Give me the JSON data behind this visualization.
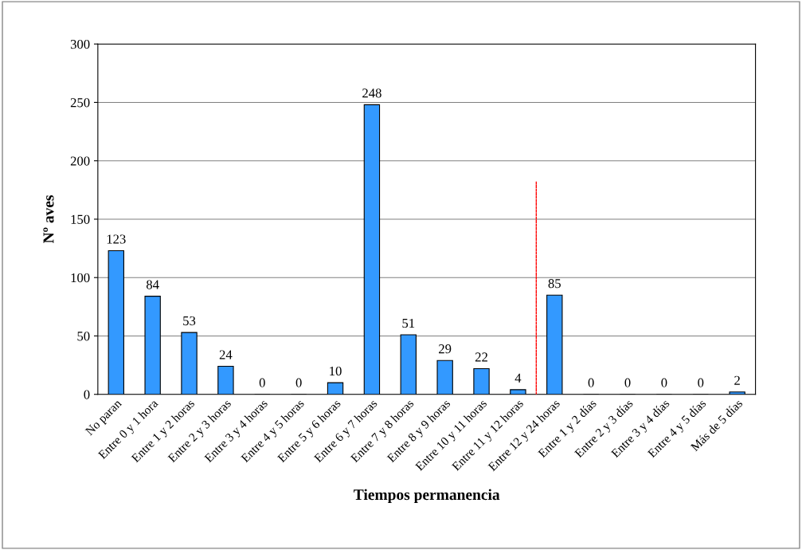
{
  "chart_data": {
    "type": "bar",
    "xlabel": "Tiempos permanencia",
    "ylabel": "Nº aves",
    "categories": [
      "No paran",
      "Entre 0 y 1 hora",
      "Entre 1 y 2 horas",
      "Entre 2 y 3 horas",
      "Entre 3 y 4 horas",
      "Entre 4 y 5 horas",
      "Entre 5 y 6 horas",
      "Entre 6 y 7 horas",
      "Entre 7 y 8 horas",
      "Entre 8 y 9 horas",
      "Entre 10 y 11 horas",
      "Entre 11 y 12 horas",
      "Entre 12 y 24 horas",
      "Entre 1 y 2 días",
      "Entre 2 y 3 días",
      "Entre 3 y 4 días",
      "Entre 4 y 5 días",
      "Más de 5 días"
    ],
    "values": [
      123,
      84,
      53,
      24,
      0,
      0,
      10,
      248,
      51,
      29,
      22,
      4,
      85,
      0,
      0,
      0,
      0,
      2
    ],
    "color": "#3399ff",
    "data_labels": true,
    "ylim": [
      0,
      300
    ],
    "yticks": [
      0,
      50,
      100,
      150,
      200,
      250,
      300
    ],
    "grid": "y"
  }
}
